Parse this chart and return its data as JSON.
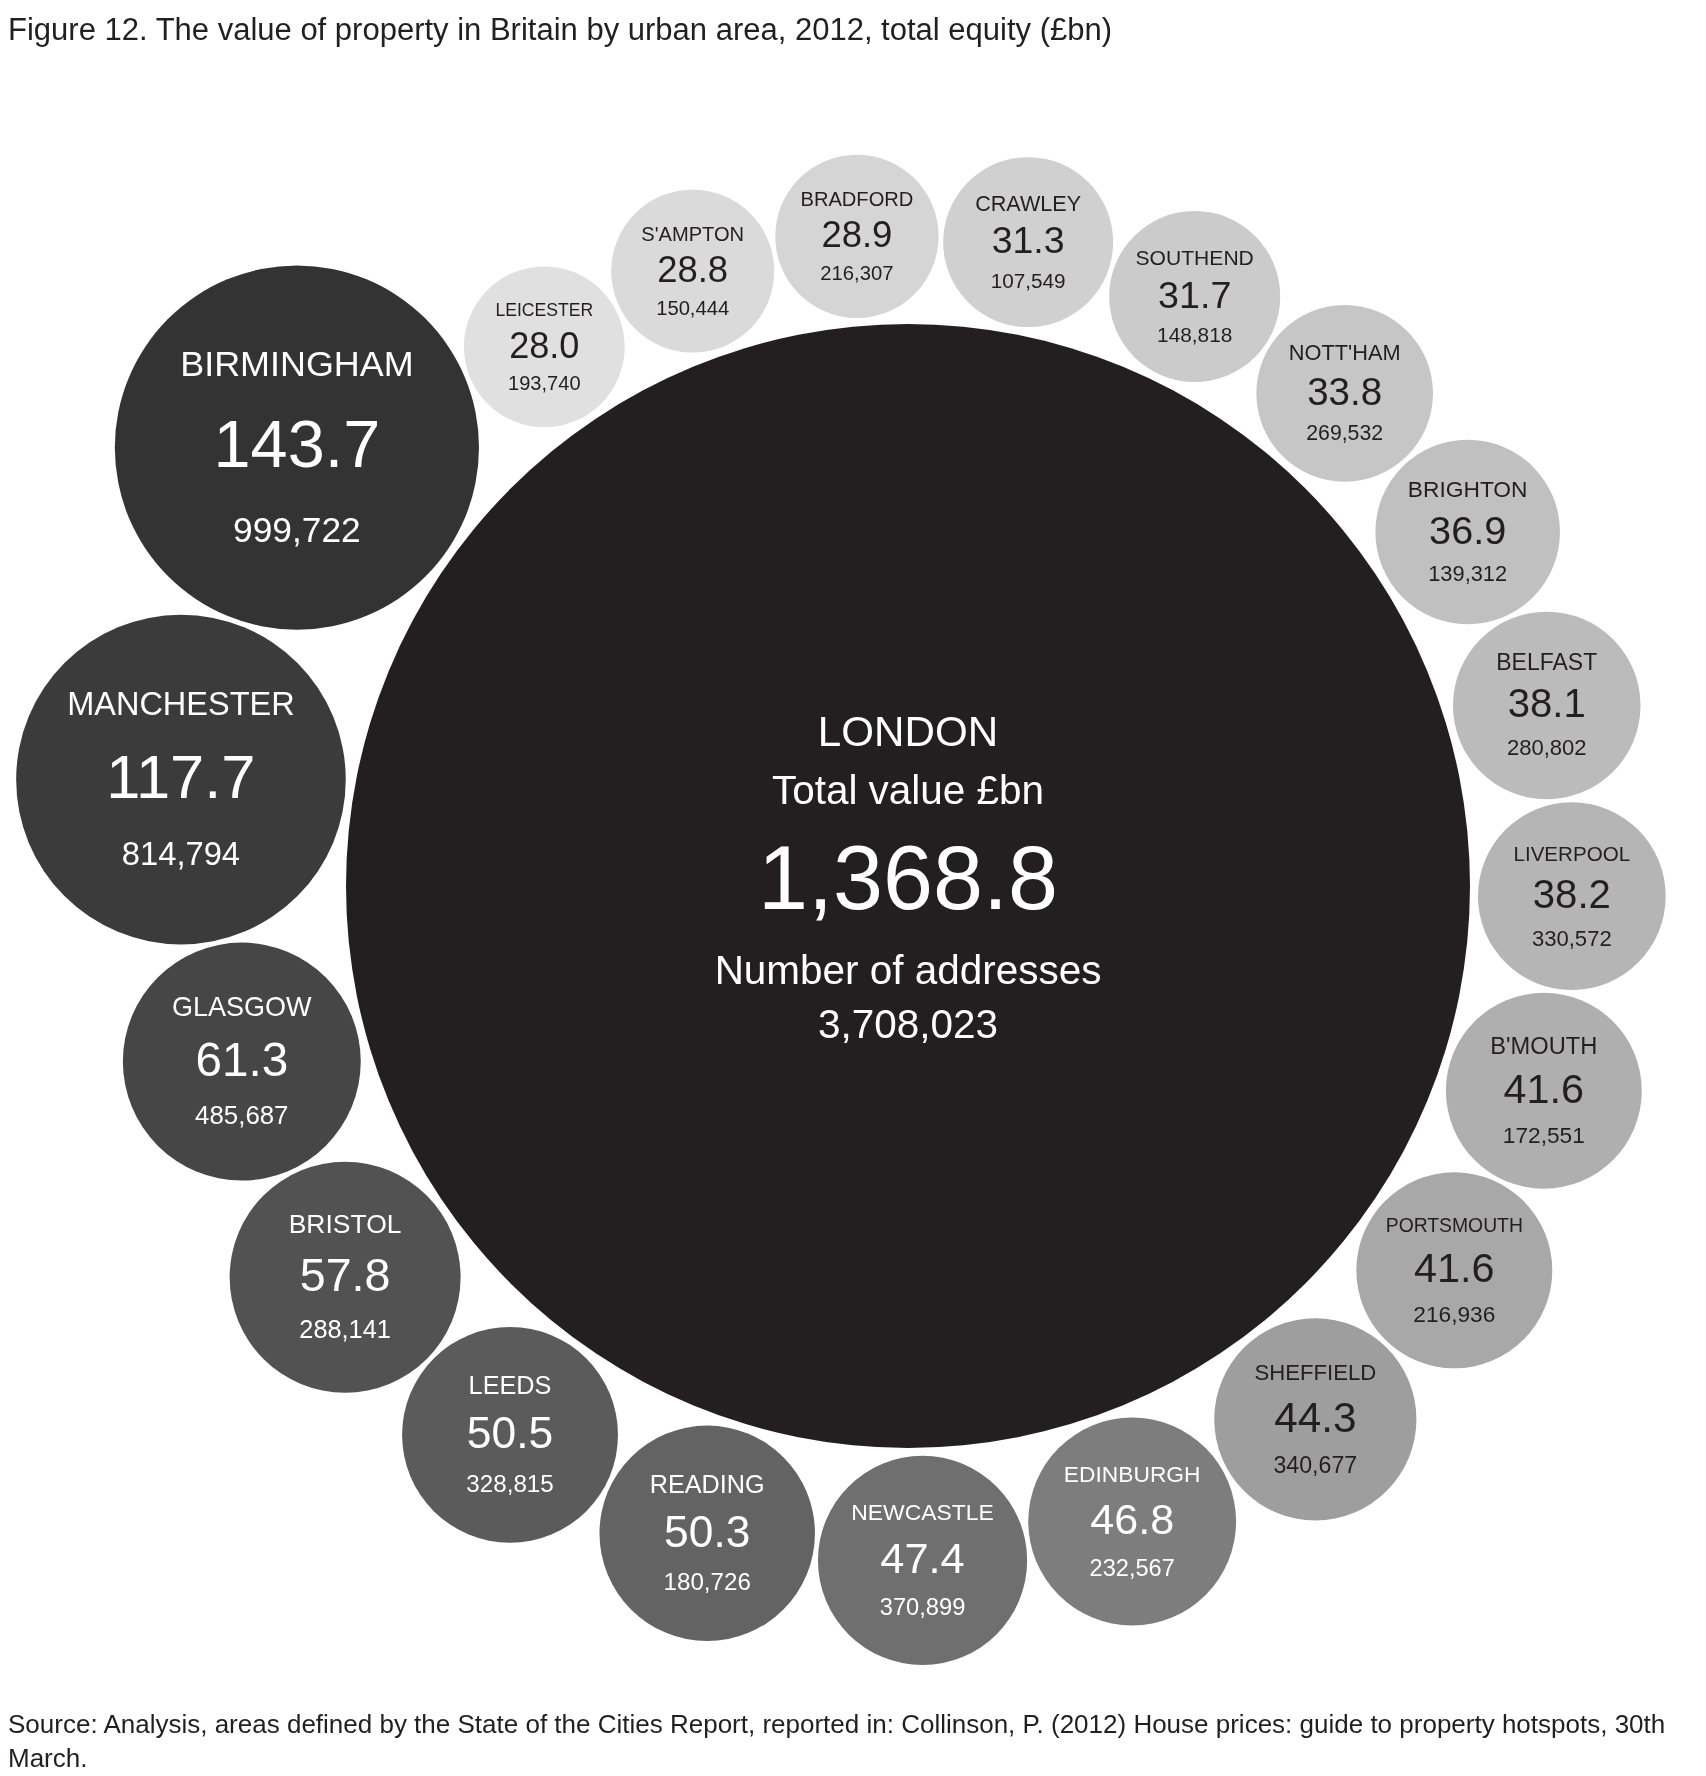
{
  "chart_data": {
    "type": "other",
    "title": "Figure 12.  The value of property in Britain by urban area, 2012, total equity (£bn)",
    "categories": [
      "LONDON",
      "LEICESTER",
      "S'AMPTON",
      "BRADFORD",
      "CRAWLEY",
      "SOUTHEND",
      "NOTT'HAM",
      "BRIGHTON",
      "BELFAST",
      "LIVERPOOL",
      "B'MOUTH",
      "PORTSMOUTH",
      "SHEFFIELD",
      "EDINBURGH",
      "NEWCASTLE",
      "READING",
      "LEEDS",
      "BRISTOL",
      "GLASGOW",
      "MANCHESTER",
      "BIRMINGHAM"
    ],
    "series": [
      {
        "name": "Total value £bn",
        "values": [
          1368.8,
          28.0,
          28.8,
          28.9,
          31.3,
          31.7,
          33.8,
          36.9,
          38.1,
          38.2,
          41.6,
          41.6,
          44.3,
          46.8,
          47.4,
          50.3,
          50.5,
          57.8,
          61.3,
          117.7,
          143.7
        ],
        "value_labels": [
          "1,368.8",
          "28.0",
          "28.8",
          "28.9",
          "31.3",
          "31.7",
          "33.8",
          "36.9",
          "38.1",
          "38.2",
          "41.6",
          "41.6",
          "44.3",
          "46.8",
          "47.4",
          "50.3",
          "50.5",
          "57.8",
          "61.3",
          "117.7",
          "143.7"
        ],
        "colors": [
          "#231f20",
          "#e0e0e0",
          "#dadada",
          "#d5d5d5",
          "#d0d0d0",
          "#cbcbcb",
          "#c6c6c6",
          "#c0c0c0",
          "#bbbbbb",
          "#b5b5b5",
          "#afafaf",
          "#a8a8a8",
          "#9e9e9e",
          "#7d7d7d",
          "#6f6f6f",
          "#636363",
          "#5b5b5b",
          "#525252",
          "#464646",
          "#3b3b3b",
          "#333333"
        ]
      }
    ],
    "annotations": [
      {
        "text": "Number of addresses",
        "x": "LONDON"
      },
      {
        "text": "3,708,023",
        "x": "LONDON"
      },
      {
        "text": "193,740",
        "x": "LEICESTER"
      },
      {
        "text": "150,444",
        "x": "S'AMPTON"
      },
      {
        "text": "216,307",
        "x": "BRADFORD"
      },
      {
        "text": "107,549",
        "x": "CRAWLEY"
      },
      {
        "text": "148,818",
        "x": "SOUTHEND"
      },
      {
        "text": "269,532",
        "x": "NOTT'HAM"
      },
      {
        "text": "139,312",
        "x": "BRIGHTON"
      },
      {
        "text": "280,802",
        "x": "BELFAST"
      },
      {
        "text": "330,572",
        "x": "LIVERPOOL"
      },
      {
        "text": "172,551",
        "x": "B'MOUTH"
      },
      {
        "text": "216,936",
        "x": "PORTSMOUTH"
      },
      {
        "text": "340,677",
        "x": "SHEFFIELD"
      },
      {
        "text": "232,567",
        "x": "EDINBURGH"
      },
      {
        "text": "370,899",
        "x": "NEWCASTLE"
      },
      {
        "text": "180,726",
        "x": "READING"
      },
      {
        "text": "328,815",
        "x": "LEEDS"
      },
      {
        "text": "288,141",
        "x": "BRISTOL"
      },
      {
        "text": "485,687",
        "x": "GLASGOW"
      },
      {
        "text": "814,794",
        "x": "MANCHESTER"
      },
      {
        "text": "999,722",
        "x": "BIRMINGHAM"
      },
      "Source: Analysis, areas defined by the State of the Cities Report, reported in: Collinson, P. (2012) House prices: guide to property hotspots, 30th March."
    ]
  }
}
